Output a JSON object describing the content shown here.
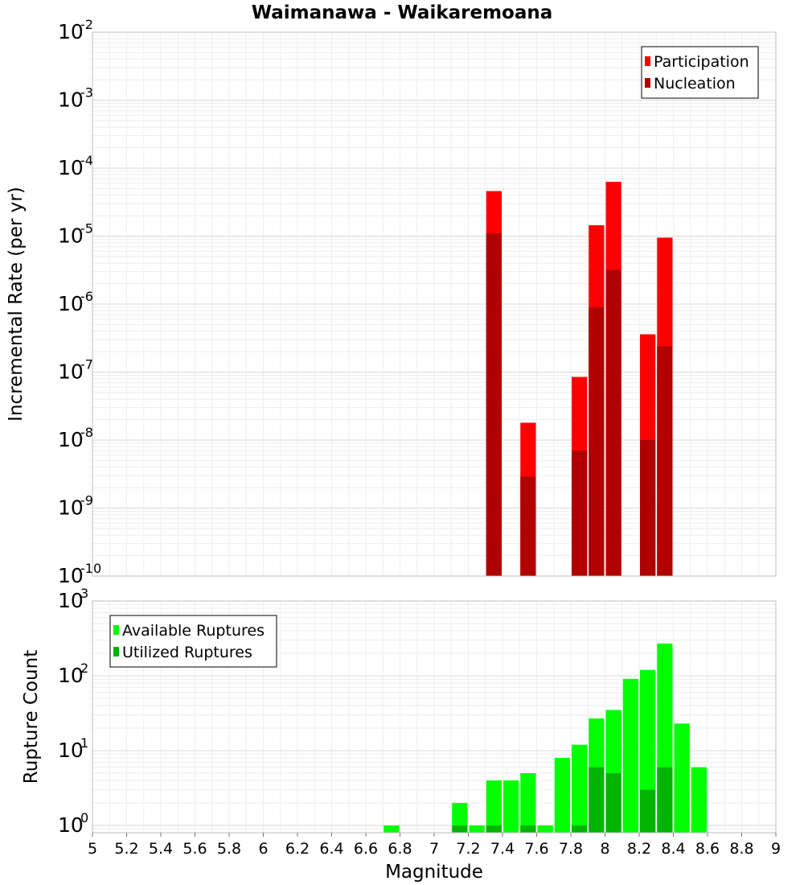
{
  "chart_data": [
    {
      "type": "bar",
      "title": "Waimanawa - Waikaremoana",
      "ylabel": "Incremental Rate (per yr)",
      "xlabel": "",
      "yscale": "log",
      "ylim": [
        1e-10,
        0.01
      ],
      "xlim": [
        5,
        9
      ],
      "bin_width": 0.1,
      "y_ticks": [
        {
          "base": "10",
          "exp": "-10"
        },
        {
          "base": "10",
          "exp": "-9"
        },
        {
          "base": "10",
          "exp": "-8"
        },
        {
          "base": "10",
          "exp": "-7"
        },
        {
          "base": "10",
          "exp": "-6"
        },
        {
          "base": "10",
          "exp": "-5"
        },
        {
          "base": "10",
          "exp": "-4"
        },
        {
          "base": "10",
          "exp": "-3"
        },
        {
          "base": "10",
          "exp": "-2"
        }
      ],
      "legend": {
        "position": "top-right"
      },
      "series": [
        {
          "name": "Participation",
          "color": "#ff0000",
          "x": [
            7.35,
            7.55,
            7.85,
            7.95,
            8.05,
            8.25,
            8.35
          ],
          "values": [
            4.6e-05,
            1.8e-08,
            8.5e-08,
            1.45e-05,
            6.3e-05,
            3.6e-07,
            9.5e-06
          ]
        },
        {
          "name": "Nucleation",
          "color": "#b00000",
          "x": [
            7.35,
            7.55,
            7.85,
            7.95,
            8.05,
            8.25,
            8.35
          ],
          "values": [
            1.1e-05,
            2.9e-09,
            7e-09,
            9e-07,
            3.2e-06,
            1e-08,
            2.4e-07
          ]
        }
      ]
    },
    {
      "type": "bar",
      "title": "",
      "ylabel": "Rupture Count",
      "xlabel": "Magnitude",
      "yscale": "log",
      "ylim": [
        0.8,
        1000
      ],
      "xlim": [
        5,
        9
      ],
      "bin_width": 0.1,
      "x_ticks": [
        "5",
        "5.2",
        "5.4",
        "5.6",
        "5.8",
        "6",
        "6.2",
        "6.4",
        "6.6",
        "6.8",
        "7",
        "7.2",
        "7.4",
        "7.6",
        "7.8",
        "8",
        "8.2",
        "8.4",
        "8.6",
        "8.8",
        "9"
      ],
      "y_ticks": [
        {
          "base": "10",
          "exp": "0"
        },
        {
          "base": "10",
          "exp": "1"
        },
        {
          "base": "10",
          "exp": "2"
        },
        {
          "base": "10",
          "exp": "3"
        }
      ],
      "legend": {
        "position": "top-left"
      },
      "series": [
        {
          "name": "Available Ruptures",
          "color": "#00ff00",
          "x": [
            6.75,
            7.15,
            7.25,
            7.35,
            7.45,
            7.55,
            7.65,
            7.75,
            7.85,
            7.95,
            8.05,
            8.15,
            8.25,
            8.35,
            8.45,
            8.55
          ],
          "values": [
            1,
            2,
            1,
            4,
            4,
            5,
            1,
            8,
            12,
            27,
            35,
            91,
            120,
            270,
            23,
            6
          ]
        },
        {
          "name": "Utilized Ruptures",
          "color": "#00b400",
          "x": [
            7.15,
            7.35,
            7.55,
            7.85,
            7.95,
            8.05,
            8.25,
            8.35
          ],
          "values": [
            1,
            1,
            1,
            1,
            6,
            5,
            3,
            6
          ]
        }
      ]
    }
  ]
}
